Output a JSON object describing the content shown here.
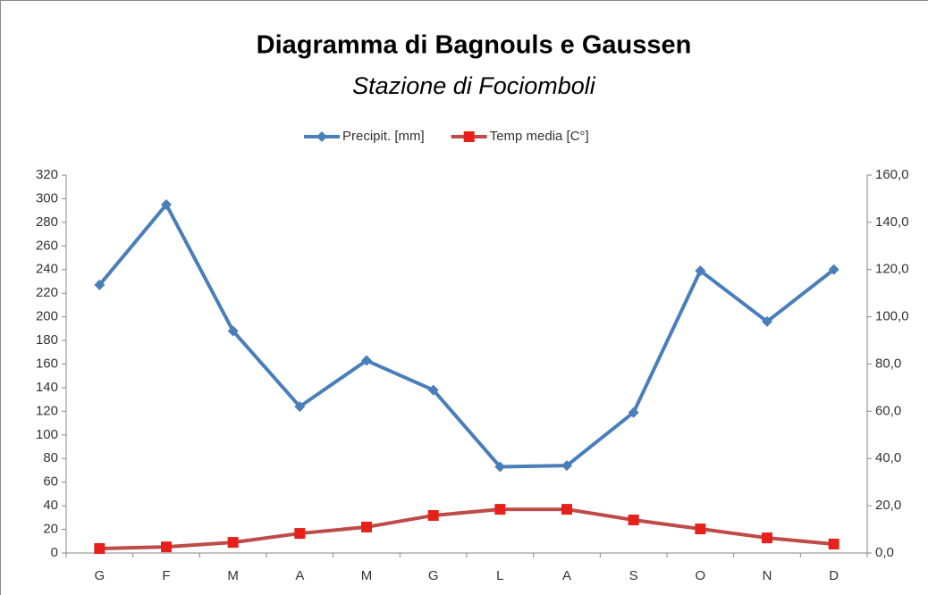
{
  "chart_data": {
    "type": "line",
    "title": "Diagramma di Bagnouls e Gaussen",
    "subtitle": "Stazione di Fociomboli",
    "categories": [
      "G",
      "F",
      "M",
      "A",
      "M",
      "G",
      "L",
      "A",
      "S",
      "O",
      "N",
      "D"
    ],
    "series": [
      {
        "name": "Precipit. [mm]",
        "color": "#4a7ebb",
        "marker": "diamond",
        "values": [
          227,
          295,
          188,
          124,
          163,
          138,
          73,
          74,
          119,
          239,
          196,
          240
        ]
      },
      {
        "name": "Temp media [C°]",
        "color": "#be4b48",
        "marker": "square",
        "axis": "y2",
        "values": [
          1.9,
          2.6,
          4.5,
          8.3,
          11,
          15.9,
          18.5,
          18.5,
          14,
          10.2,
          6.4,
          3.8
        ]
      }
    ],
    "ylim": [
      0,
      320
    ],
    "yticks": [
      0,
      20,
      40,
      60,
      80,
      100,
      120,
      140,
      160,
      180,
      200,
      220,
      240,
      260,
      280,
      300,
      320
    ],
    "y2lim": [
      0,
      160
    ],
    "y2ticks": [
      {
        "value": 0,
        "label": "0,0"
      },
      {
        "value": 20,
        "label": "20,0"
      },
      {
        "value": 40,
        "label": "40,0"
      },
      {
        "value": 60,
        "label": "60,0"
      },
      {
        "value": 80,
        "label": "80,0"
      },
      {
        "value": 100,
        "label": "100,0"
      },
      {
        "value": 120,
        "label": "120,0"
      },
      {
        "value": 140,
        "label": "140,0"
      },
      {
        "value": 160,
        "label": "160,0"
      }
    ],
    "legend": "top"
  }
}
